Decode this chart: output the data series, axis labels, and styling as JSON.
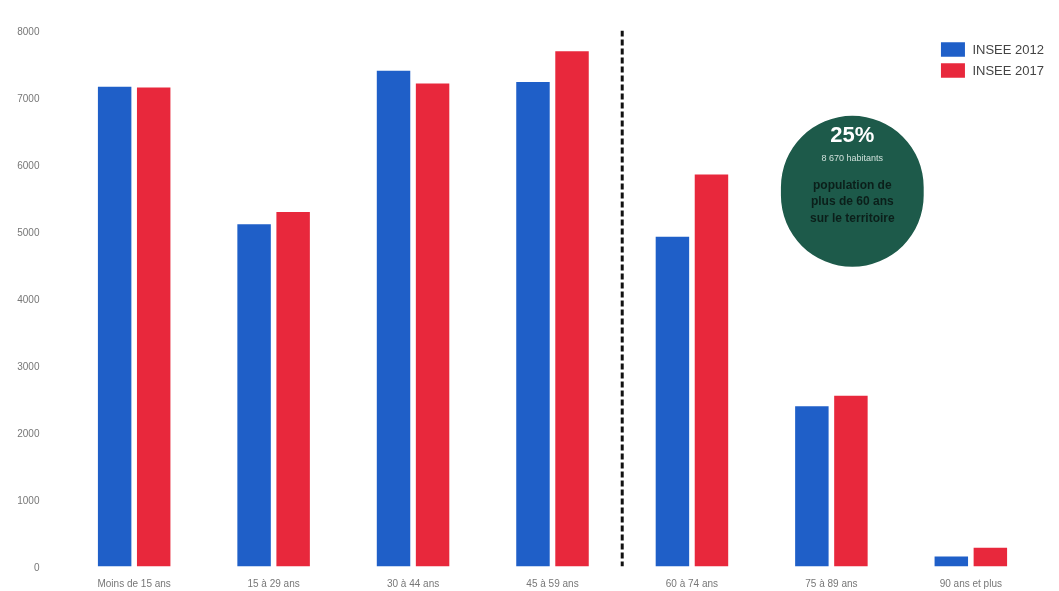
{
  "chart_data": {
    "type": "bar",
    "categories": [
      "Moins de 15 ans",
      "15 à 29 ans",
      "30 à 44 ans",
      "45 à 59 ans",
      "60 à 74 ans",
      "75 à 89 ans",
      "90 ans et plus"
    ],
    "series": [
      {
        "name": "INSEE 2012",
        "color": "#1f5fc8",
        "values": [
          7160,
          5110,
          7400,
          7230,
          4920,
          2390,
          150
        ]
      },
      {
        "name": "INSEE 2017",
        "color": "#e8283c",
        "values": [
          7150,
          5290,
          7210,
          7690,
          5850,
          2550,
          280
        ]
      }
    ],
    "ylim": [
      0,
      8000
    ],
    "yticks": [
      0,
      1000,
      2000,
      3000,
      4000,
      5000,
      6000,
      7000,
      8000
    ],
    "annotations": [
      "25%",
      "8 670 habitants",
      "population de plus de 60 ans sur le territoire"
    ],
    "grid": false,
    "legend": "top right"
  }
}
